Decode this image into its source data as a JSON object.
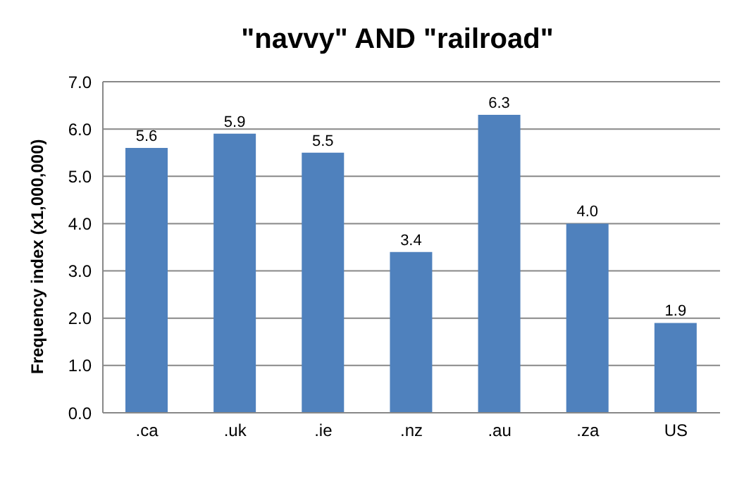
{
  "chart_data": {
    "type": "bar",
    "title": "\"navvy\" AND \"railroad\"",
    "ylabel": "Frequency index (x1,000,000)",
    "categories": [
      ".ca",
      ".uk",
      ".ie",
      ".nz",
      ".au",
      ".za",
      "US"
    ],
    "values": [
      5.6,
      5.9,
      5.5,
      3.4,
      6.3,
      4.0,
      1.9
    ],
    "color": "#4f81bd",
    "ylim": [
      0,
      7
    ],
    "yticks": [
      {
        "value": 0,
        "label": "0.0"
      },
      {
        "value": 1,
        "label": "1.0"
      },
      {
        "value": 2,
        "label": "2.0"
      },
      {
        "value": 3,
        "label": "3.0"
      },
      {
        "value": 4,
        "label": "4.0"
      },
      {
        "value": 5,
        "label": "5.0"
      },
      {
        "value": 6,
        "label": "6.0"
      },
      {
        "value": 7,
        "label": "7.0"
      }
    ],
    "value_labels": [
      "5.6",
      "5.9",
      "5.5",
      "3.4",
      "6.3",
      "4.0",
      "1.9"
    ],
    "grid": "y"
  }
}
